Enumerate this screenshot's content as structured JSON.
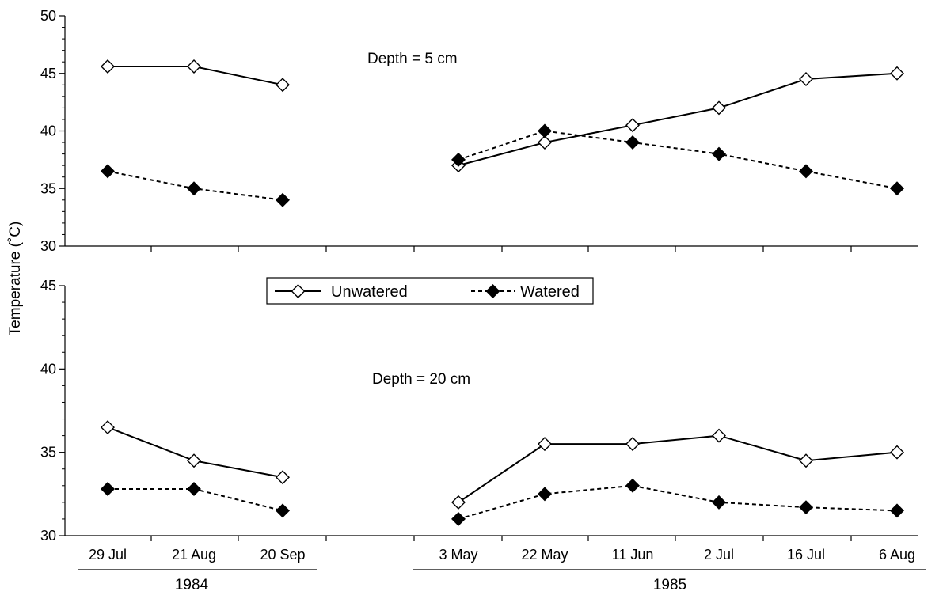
{
  "chart_data": [
    {
      "type": "line",
      "annotation": "Depth = 5 cm",
      "ylim": [
        30,
        50
      ],
      "yticks": [
        30,
        35,
        40,
        45,
        50
      ],
      "series": [
        {
          "name": "Unwatered",
          "marker": "open-diamond",
          "line": "solid",
          "segments": [
            [
              45.6,
              45.6,
              44.0
            ],
            [
              37.0,
              39.0,
              40.5,
              42.0,
              44.5,
              45.0
            ]
          ]
        },
        {
          "name": "Watered",
          "marker": "filled-diamond",
          "line": "dashed",
          "segments": [
            [
              36.5,
              35.0,
              34.0
            ],
            [
              37.5,
              40.0,
              39.0,
              38.0,
              36.5,
              35.0
            ]
          ]
        }
      ]
    },
    {
      "type": "line",
      "annotation": "Depth = 20 cm",
      "ylim": [
        30,
        45
      ],
      "yticks": [
        30,
        35,
        40,
        45
      ],
      "series": [
        {
          "name": "Unwatered",
          "marker": "open-diamond",
          "line": "solid",
          "segments": [
            [
              36.5,
              34.5,
              33.5
            ],
            [
              32.0,
              35.5,
              35.5,
              36.0,
              34.5,
              35.0
            ]
          ]
        },
        {
          "name": "Watered",
          "marker": "filled-diamond",
          "line": "dashed",
          "segments": [
            [
              32.8,
              32.8,
              31.5
            ],
            [
              31.0,
              32.5,
              33.0,
              32.0,
              31.7,
              31.5
            ]
          ]
        }
      ]
    }
  ],
  "x_axis": {
    "groups": [
      {
        "year": "1984",
        "categories": [
          "29 Jul",
          "21 Aug",
          "20 Sep"
        ]
      },
      {
        "year": "1985",
        "categories": [
          "3 May",
          "22 May",
          "11 Jun",
          "2 Jul",
          "16 Jul",
          "6 Aug"
        ]
      }
    ]
  },
  "ylabel": "Temperature (˚C)",
  "legend": {
    "placement": "between panels, center",
    "items": [
      {
        "name": "Unwatered",
        "marker": "open-diamond",
        "line": "solid"
      },
      {
        "name": "Watered",
        "marker": "filled-diamond",
        "line": "dashed"
      }
    ]
  },
  "colors": {
    "line": "#000000",
    "open_marker_fill": "#ffffff",
    "filled_marker_fill": "#000000"
  }
}
